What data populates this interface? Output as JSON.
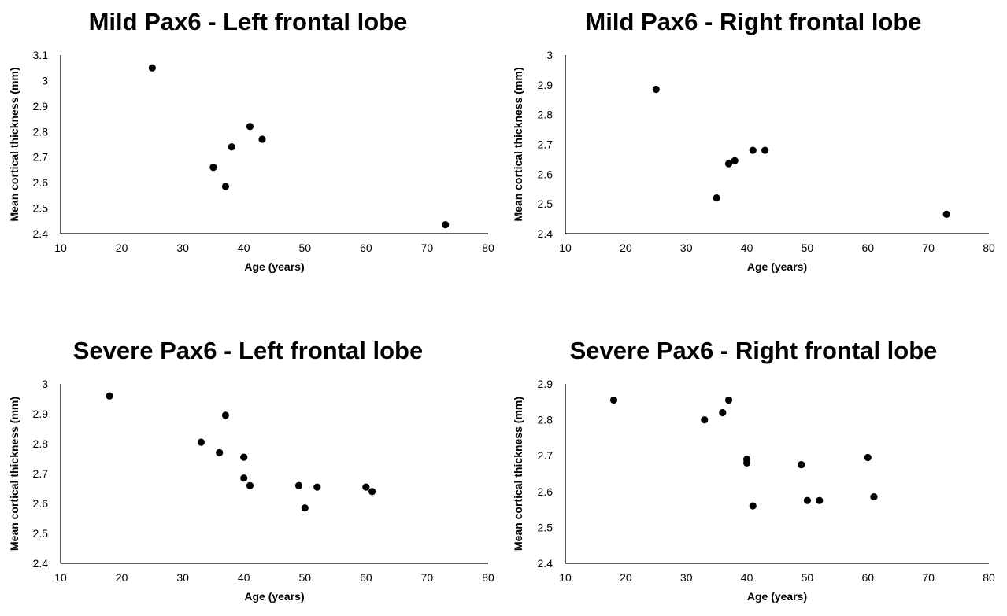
{
  "chart_data": [
    {
      "type": "scatter",
      "title": "Mild Pax6 - Left frontal lobe",
      "xlabel": "Age (years)",
      "ylabel": "Mean cortical thickness (mm)",
      "xlim": [
        10,
        80
      ],
      "ylim": [
        2.4,
        3.1
      ],
      "xticks": [
        "10",
        "20",
        "30",
        "40",
        "50",
        "60",
        "70",
        "80"
      ],
      "yticks": [
        "2.4",
        "2.5",
        "2.6",
        "2.7",
        "2.8",
        "2.9",
        "3",
        "3.1"
      ],
      "grid": false,
      "points": [
        {
          "x": 25,
          "y": 3.05
        },
        {
          "x": 35,
          "y": 2.66
        },
        {
          "x": 37,
          "y": 2.585
        },
        {
          "x": 38,
          "y": 2.74
        },
        {
          "x": 41,
          "y": 2.82
        },
        {
          "x": 43,
          "y": 2.77
        },
        {
          "x": 73,
          "y": 2.435
        }
      ]
    },
    {
      "type": "scatter",
      "title": "Mild Pax6 - Right frontal lobe",
      "xlabel": "Age (years)",
      "ylabel": "Mean cortical thickness (mm)",
      "xlim": [
        10,
        80
      ],
      "ylim": [
        2.4,
        3.0
      ],
      "xticks": [
        "10",
        "20",
        "30",
        "40",
        "50",
        "60",
        "70",
        "80"
      ],
      "yticks": [
        "2.4",
        "2.5",
        "2.6",
        "2.7",
        "2.8",
        "2.9",
        "3"
      ],
      "grid": false,
      "points": [
        {
          "x": 25,
          "y": 2.885
        },
        {
          "x": 35,
          "y": 2.52
        },
        {
          "x": 37,
          "y": 2.635
        },
        {
          "x": 38,
          "y": 2.645
        },
        {
          "x": 41,
          "y": 2.68
        },
        {
          "x": 43,
          "y": 2.68
        },
        {
          "x": 73,
          "y": 2.465
        }
      ]
    },
    {
      "type": "scatter",
      "title": "Severe Pax6 - Left frontal lobe",
      "xlabel": "Age (years)",
      "ylabel": "Mean cortical thickness (mm)",
      "xlim": [
        10,
        80
      ],
      "ylim": [
        2.4,
        3.0
      ],
      "xticks": [
        "10",
        "20",
        "30",
        "40",
        "50",
        "60",
        "70",
        "80"
      ],
      "yticks": [
        "2.4",
        "2.5",
        "2.6",
        "2.7",
        "2.8",
        "2.9",
        "3"
      ],
      "grid": false,
      "points": [
        {
          "x": 18,
          "y": 2.96
        },
        {
          "x": 33,
          "y": 2.805
        },
        {
          "x": 36,
          "y": 2.77
        },
        {
          "x": 37,
          "y": 2.895
        },
        {
          "x": 40,
          "y": 2.755
        },
        {
          "x": 40,
          "y": 2.685
        },
        {
          "x": 41,
          "y": 2.66
        },
        {
          "x": 49,
          "y": 2.66
        },
        {
          "x": 50,
          "y": 2.585
        },
        {
          "x": 52,
          "y": 2.655
        },
        {
          "x": 60,
          "y": 2.655
        },
        {
          "x": 61,
          "y": 2.64
        }
      ]
    },
    {
      "type": "scatter",
      "title": "Severe Pax6 - Right frontal lobe",
      "xlabel": "Age (years)",
      "ylabel": "Mean cortical thickness (mm)",
      "xlim": [
        10,
        80
      ],
      "ylim": [
        2.4,
        2.9
      ],
      "xticks": [
        "10",
        "20",
        "30",
        "40",
        "50",
        "60",
        "70",
        "80"
      ],
      "yticks": [
        "2.4",
        "2.5",
        "2.6",
        "2.7",
        "2.8",
        "2.9"
      ],
      "grid": false,
      "points": [
        {
          "x": 18,
          "y": 2.855
        },
        {
          "x": 33,
          "y": 2.8
        },
        {
          "x": 36,
          "y": 2.82
        },
        {
          "x": 37,
          "y": 2.855
        },
        {
          "x": 40,
          "y": 2.69
        },
        {
          "x": 40,
          "y": 2.68
        },
        {
          "x": 41,
          "y": 2.56
        },
        {
          "x": 49,
          "y": 2.675
        },
        {
          "x": 50,
          "y": 2.575
        },
        {
          "x": 52,
          "y": 2.575
        },
        {
          "x": 60,
          "y": 2.695
        },
        {
          "x": 61,
          "y": 2.585
        }
      ]
    }
  ]
}
